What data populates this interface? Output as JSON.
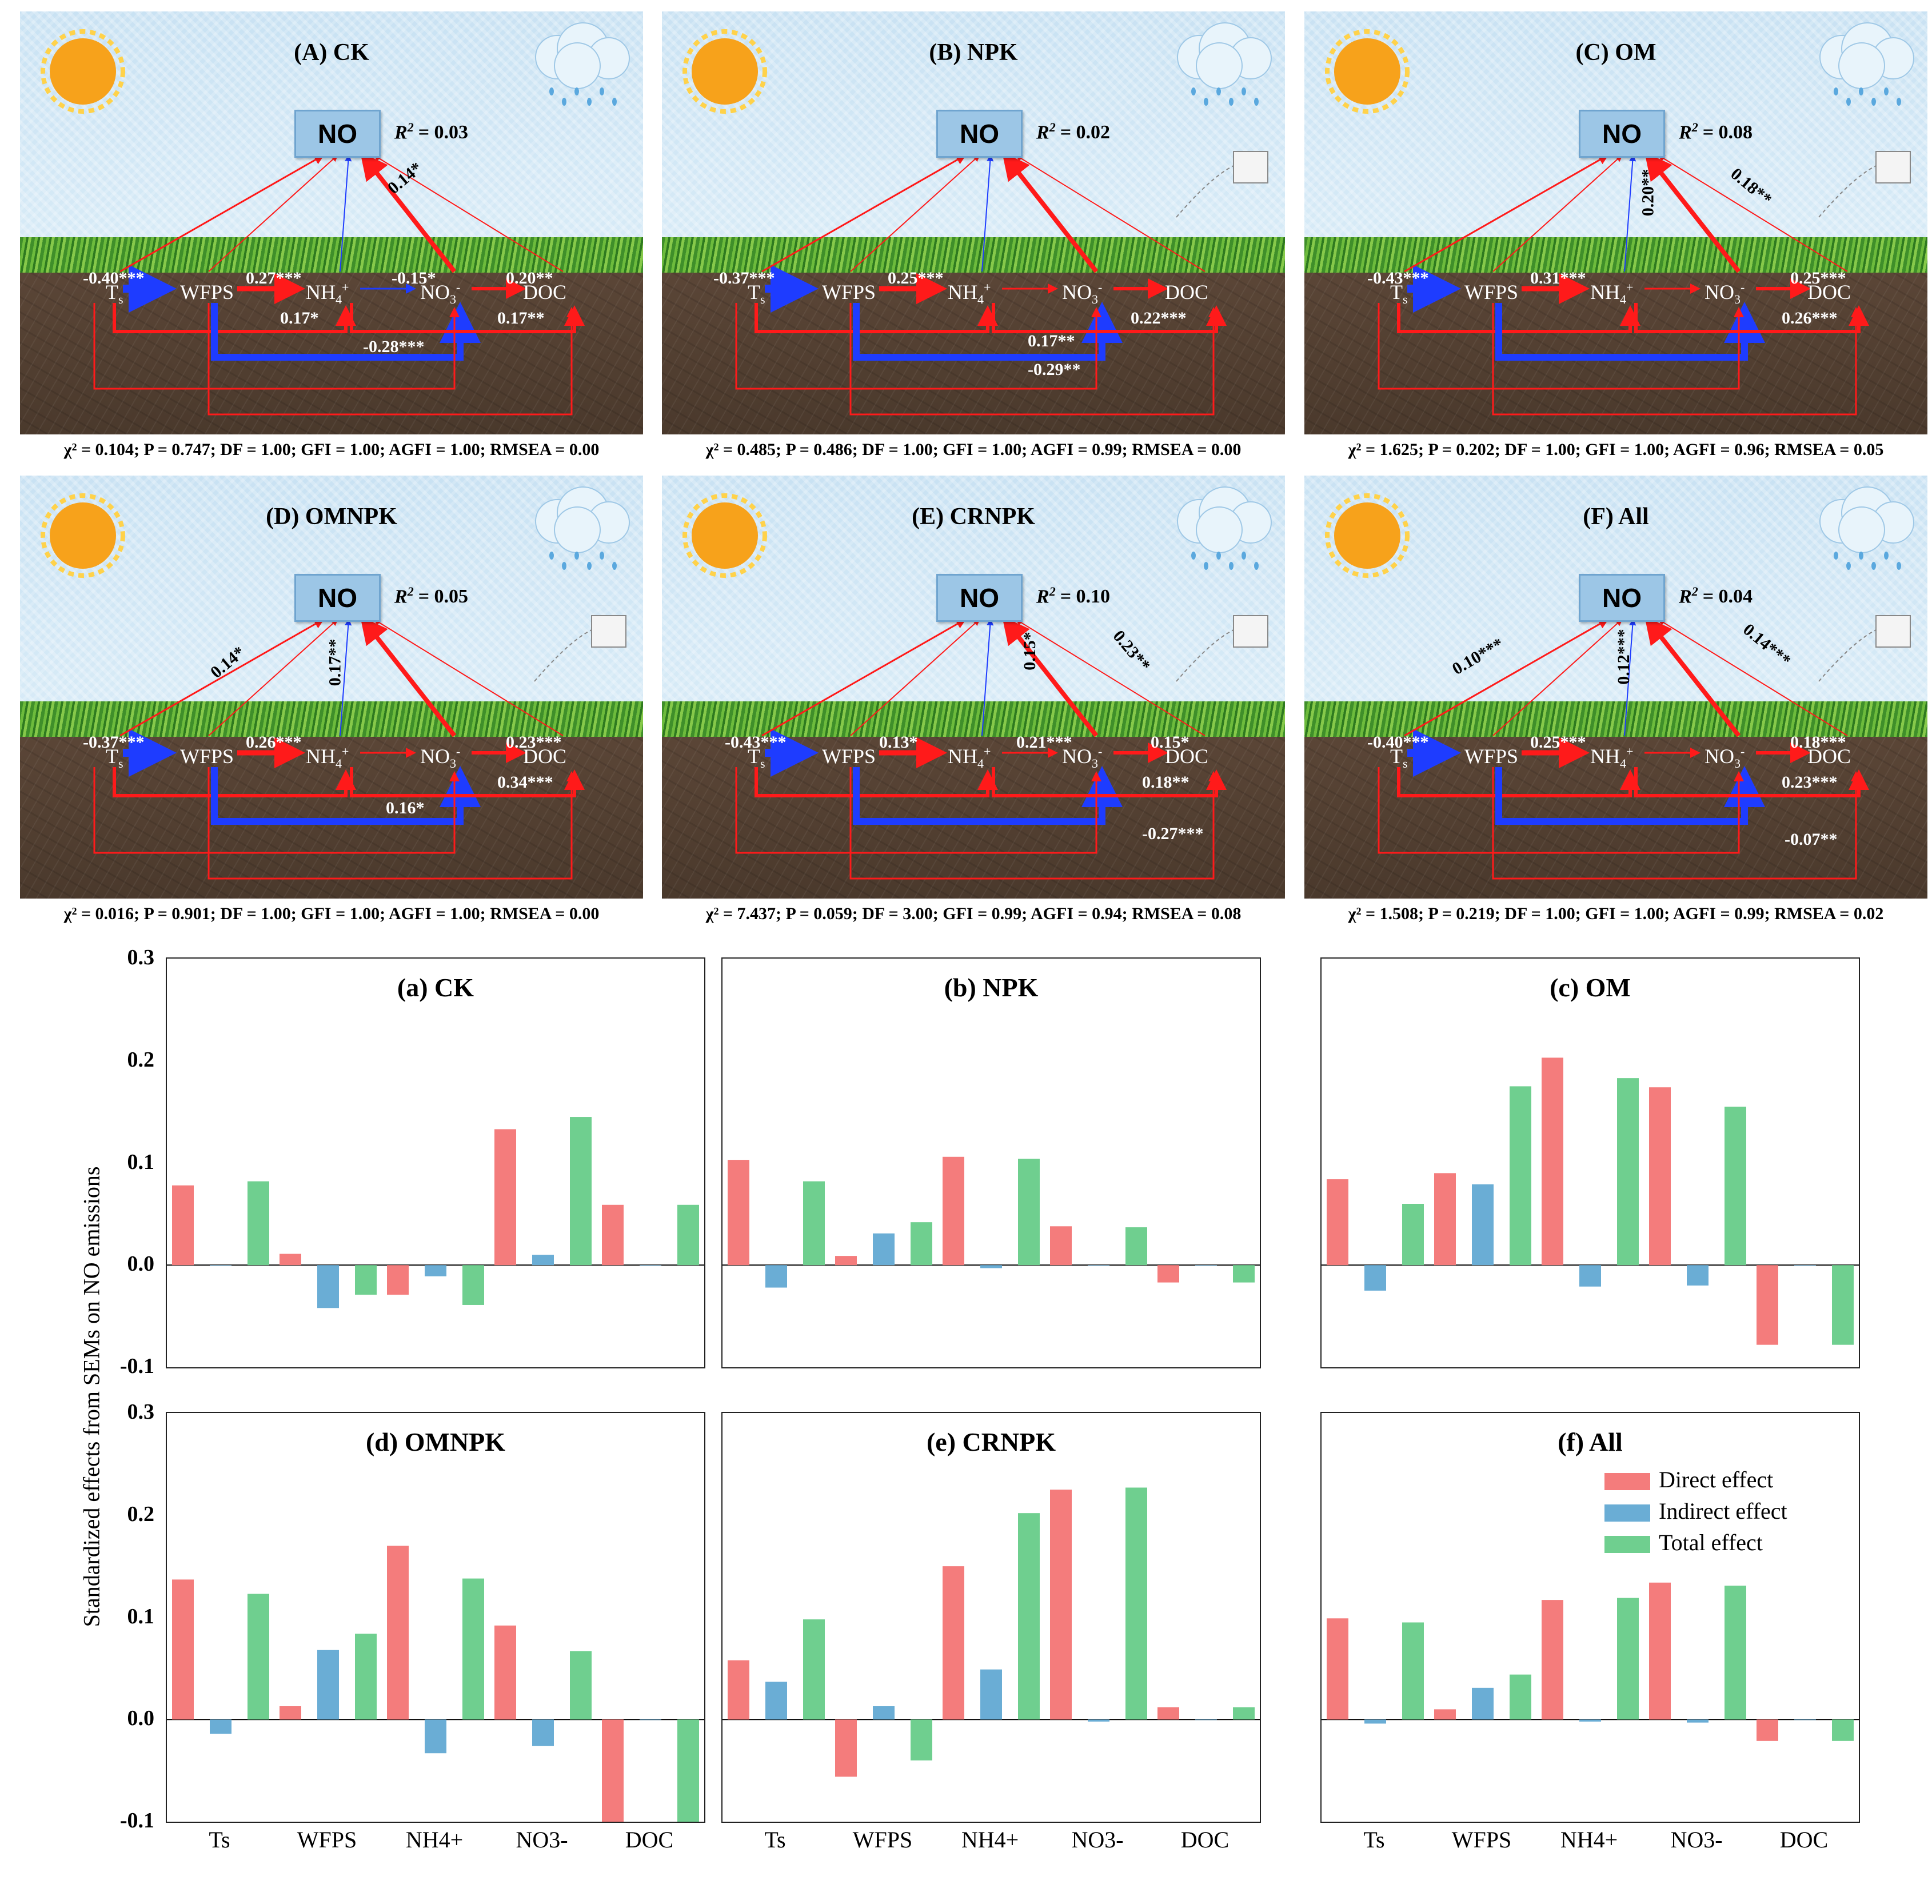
{
  "sem_panels": [
    {
      "title": "(A) CK",
      "no_label": "NO",
      "r2_label": "R",
      "r2_value": "= 0.03",
      "vars": [
        "T",
        "WFPS",
        "NH",
        "NO",
        "DOC"
      ],
      "coefs": [
        "-0.40***",
        "0.27***",
        "-0.15*",
        "0.20**",
        "0.17*",
        "0.17**",
        "-0.28***",
        "0.14*"
      ],
      "fit": "χ² = 0.104; P = 0.747; DF = 1.00; GFI = 1.00; AGFI = 1.00; RMSEA = 0.00"
    },
    {
      "title": "(B) NPK",
      "no_label": "NO",
      "r2_label": "R",
      "r2_value": "= 0.02",
      "vars": [
        "T",
        "WFPS",
        "NH",
        "NO",
        "DOC"
      ],
      "coefs": [
        "-0.37***",
        "0.25***",
        "0.17**",
        "0.22***",
        "-0.29**"
      ],
      "fit": "χ² = 0.485; P = 0.486; DF = 1.00; GFI = 1.00; AGFI = 0.99; RMSEA = 0.00"
    },
    {
      "title": "(C) OM",
      "no_label": "NO",
      "r2_label": "R",
      "r2_value": "= 0.08",
      "vars": [
        "T",
        "WFPS",
        "NH",
        "NO",
        "DOC"
      ],
      "coefs": [
        "-0.43***",
        "0.31***",
        "0.25***",
        "0.26***",
        "0.20**",
        "0.18**"
      ],
      "fit": "χ² = 1.625; P = 0.202; DF = 1.00; GFI = 1.00; AGFI = 0.96; RMSEA = 0.05"
    },
    {
      "title": "(D) OMNPK",
      "no_label": "NO",
      "r2_label": "R",
      "r2_value": "= 0.05",
      "vars": [
        "T",
        "WFPS",
        "NH",
        "NO",
        "DOC"
      ],
      "coefs": [
        "-0.37***",
        "0.26***",
        "0.23***",
        "0.34***",
        "0.16*",
        "0.14*",
        "0.17**"
      ],
      "fit": "χ² = 0.016; P = 0.901; DF = 1.00; GFI = 1.00; AGFI = 1.00; RMSEA = 0.00"
    },
    {
      "title": "(E) CRNPK",
      "no_label": "NO",
      "r2_label": "R",
      "r2_value": "= 0.10",
      "vars": [
        "T",
        "WFPS",
        "NH",
        "NO",
        "DOC"
      ],
      "coefs": [
        "-0.43***",
        "0.13*",
        "0.21***",
        "0.15*",
        "0.18**",
        "-0.27***",
        "0.15*",
        "0.23**"
      ],
      "fit": "χ² = 7.437; P = 0.059; DF = 3.00; GFI = 0.99; AGFI = 0.94; RMSEA = 0.08"
    },
    {
      "title": "(F) All",
      "no_label": "NO",
      "r2_label": "R",
      "r2_value": "= 0.04",
      "vars": [
        "T",
        "WFPS",
        "NH",
        "NO",
        "DOC"
      ],
      "coefs": [
        "-0.40***",
        "0.25***",
        "0.18***",
        "0.23***",
        "-0.07**",
        "0.10***",
        "0.12***",
        "0.14***"
      ],
      "fit": "χ² = 1.508; P = 0.219; DF = 1.00; GFI = 1.00; AGFI = 0.99; RMSEA = 0.02"
    }
  ],
  "ylabel": "Standardized effects from SEMs on NO emissions",
  "ytick_labels": [
    "0.3",
    "0.2",
    "0.1",
    "0.0",
    "-0.1"
  ],
  "xtick_labels": [
    "Ts",
    "WFPS",
    "NH4+",
    "NO3-",
    "DOC"
  ],
  "legend": [
    "Direct effect",
    "Indirect effect",
    "Total effect"
  ],
  "colors": {
    "direct": "#f47c7c",
    "indirect": "#6aadd5",
    "total": "#6fcf8f",
    "arrow_pos": "#ff1a1a",
    "arrow_neg": "#1e3cff"
  },
  "chart_data": [
    {
      "type": "bar",
      "title": "(a) CK",
      "categories": [
        "Ts",
        "WFPS",
        "NH4+",
        "NO3-",
        "DOC"
      ],
      "ylim": [
        -0.1,
        0.3
      ],
      "series": [
        {
          "name": "Direct effect",
          "values": [
            0.078,
            0.011,
            -0.029,
            0.133,
            0.059
          ]
        },
        {
          "name": "Indirect effect",
          "values": [
            0.0,
            -0.042,
            -0.011,
            0.01,
            0.0
          ]
        },
        {
          "name": "Total effect",
          "values": [
            0.082,
            -0.029,
            -0.039,
            0.145,
            0.059
          ]
        }
      ]
    },
    {
      "type": "bar",
      "title": "(b) NPK",
      "categories": [
        "Ts",
        "WFPS",
        "NH4+",
        "NO3-",
        "DOC"
      ],
      "ylim": [
        -0.1,
        0.3
      ],
      "series": [
        {
          "name": "Direct effect",
          "values": [
            0.103,
            0.009,
            0.106,
            0.038,
            -0.017
          ]
        },
        {
          "name": "Indirect effect",
          "values": [
            -0.022,
            0.031,
            -0.003,
            0.0,
            0.0
          ]
        },
        {
          "name": "Total effect",
          "values": [
            0.082,
            0.042,
            0.104,
            0.037,
            -0.017
          ]
        }
      ]
    },
    {
      "type": "bar",
      "title": "(c) OM",
      "categories": [
        "Ts",
        "WFPS",
        "NH4+",
        "NO3-",
        "DOC"
      ],
      "ylim": [
        -0.1,
        0.3
      ],
      "series": [
        {
          "name": "Direct effect",
          "values": [
            0.084,
            0.09,
            0.203,
            0.174,
            -0.078
          ]
        },
        {
          "name": "Indirect effect",
          "values": [
            -0.025,
            0.079,
            -0.021,
            -0.02,
            0.0
          ]
        },
        {
          "name": "Total effect",
          "values": [
            0.06,
            0.175,
            0.183,
            0.155,
            -0.078
          ]
        }
      ]
    },
    {
      "type": "bar",
      "title": "(d) OMNPK",
      "categories": [
        "Ts",
        "WFPS",
        "NH4+",
        "NO3-",
        "DOC"
      ],
      "ylim": [
        -0.1,
        0.3
      ],
      "series": [
        {
          "name": "Direct effect",
          "values": [
            0.137,
            0.013,
            0.17,
            0.092,
            -0.1
          ]
        },
        {
          "name": "Indirect effect",
          "values": [
            -0.014,
            0.068,
            -0.033,
            -0.026,
            0.0
          ]
        },
        {
          "name": "Total effect",
          "values": [
            0.123,
            0.084,
            0.138,
            0.067,
            -0.1
          ]
        }
      ]
    },
    {
      "type": "bar",
      "title": "(e) CRNPK",
      "categories": [
        "Ts",
        "WFPS",
        "NH4+",
        "NO3-",
        "DOC"
      ],
      "ylim": [
        -0.1,
        0.3
      ],
      "series": [
        {
          "name": "Direct effect",
          "values": [
            0.058,
            -0.056,
            0.15,
            0.225,
            0.012
          ]
        },
        {
          "name": "Indirect effect",
          "values": [
            0.037,
            0.013,
            0.049,
            -0.002,
            0.0
          ]
        },
        {
          "name": "Total effect",
          "values": [
            0.098,
            -0.04,
            0.202,
            0.227,
            0.012
          ]
        }
      ]
    },
    {
      "type": "bar",
      "title": "(f) All",
      "categories": [
        "Ts",
        "WFPS",
        "NH4+",
        "NO3-",
        "DOC"
      ],
      "ylim": [
        -0.1,
        0.3
      ],
      "series": [
        {
          "name": "Direct effect",
          "values": [
            0.099,
            0.01,
            0.117,
            0.134,
            -0.021
          ]
        },
        {
          "name": "Indirect effect",
          "values": [
            -0.004,
            0.031,
            -0.002,
            -0.003,
            0.0
          ]
        },
        {
          "name": "Total effect",
          "values": [
            0.095,
            0.044,
            0.119,
            0.131,
            -0.021
          ]
        }
      ]
    }
  ]
}
